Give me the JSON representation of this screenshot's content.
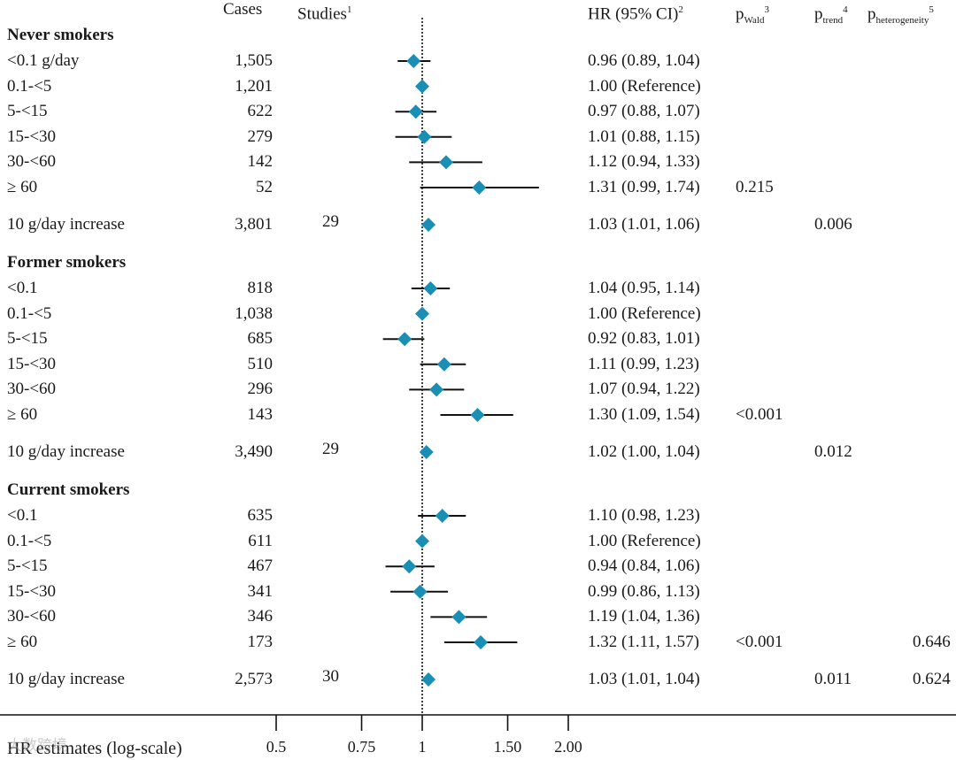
{
  "headers": {
    "cases": "Cases",
    "studies": "Studies",
    "studies_sup": "1",
    "hr": "HR (95% CI)",
    "hr_sup": "2",
    "pwald_p": "p",
    "pwald_sub": "Wald",
    "pwald_sup": "3",
    "ptrend_p": "p",
    "ptrend_sub": "trend",
    "ptrend_sup": "4",
    "phet_p": "p",
    "phet_sub": "heterogeneity",
    "phet_sup": "5"
  },
  "axis": {
    "title": "HR estimates (log-scale)",
    "ticks": [
      "0.5",
      "0.75",
      "1",
      "1.50",
      "2.00"
    ]
  },
  "watermark": "大数跨境",
  "colors": {
    "marker": "#1a8fb5",
    "line": "#111111"
  },
  "chart_data": {
    "type": "forest",
    "scale": "log",
    "reference_value": 1,
    "xlim": [
      0.5,
      2.0
    ],
    "xlabel": "HR estimates (log-scale)",
    "groups": [
      {
        "name": "Never smokers",
        "rows": [
          {
            "label": "<0.1 g/day",
            "cases": "1,505",
            "studies": "",
            "hr": 0.96,
            "lo": 0.89,
            "hi": 1.04,
            "hr_text": "0.96 (0.89, 1.04)",
            "pwald": "",
            "ptrend": "",
            "phet": ""
          },
          {
            "label": "0.1-<5",
            "cases": "1,201",
            "studies": "",
            "hr": 1.0,
            "lo": null,
            "hi": null,
            "hr_text": "1.00 (Reference)",
            "pwald": "",
            "ptrend": "",
            "phet": ""
          },
          {
            "label": "5-<15",
            "cases": "622",
            "studies": "",
            "hr": 0.97,
            "lo": 0.88,
            "hi": 1.07,
            "hr_text": "0.97 (0.88, 1.07)",
            "pwald": "",
            "ptrend": "",
            "phet": ""
          },
          {
            "label": "15-<30",
            "cases": "279",
            "studies": "",
            "hr": 1.01,
            "lo": 0.88,
            "hi": 1.15,
            "hr_text": "1.01 (0.88, 1.15)",
            "pwald": "",
            "ptrend": "",
            "phet": ""
          },
          {
            "label": "30-<60",
            "cases": "142",
            "studies": "",
            "hr": 1.12,
            "lo": 0.94,
            "hi": 1.33,
            "hr_text": "1.12 (0.94, 1.33)",
            "pwald": "",
            "ptrend": "",
            "phet": ""
          },
          {
            "label": "≥ 60",
            "cases": "52",
            "studies": "",
            "hr": 1.31,
            "lo": 0.99,
            "hi": 1.74,
            "hr_text": "1.31 (0.99, 1.74)",
            "pwald": "0.215",
            "ptrend": "",
            "phet": ""
          },
          {
            "label": "10 g/day increase",
            "cases": "3,801",
            "studies": "29",
            "hr": 1.03,
            "lo": 1.01,
            "hi": 1.06,
            "hr_text": "1.03 (1.01, 1.06)",
            "pwald": "",
            "ptrend": "0.006",
            "phet": ""
          }
        ]
      },
      {
        "name": "Former smokers",
        "rows": [
          {
            "label": "<0.1",
            "cases": "818",
            "studies": "",
            "hr": 1.04,
            "lo": 0.95,
            "hi": 1.14,
            "hr_text": "1.04 (0.95, 1.14)",
            "pwald": "",
            "ptrend": "",
            "phet": ""
          },
          {
            "label": "0.1-<5",
            "cases": "1,038",
            "studies": "",
            "hr": 1.0,
            "lo": null,
            "hi": null,
            "hr_text": "1.00 (Reference)",
            "pwald": "",
            "ptrend": "",
            "phet": ""
          },
          {
            "label": "5-<15",
            "cases": "685",
            "studies": "",
            "hr": 0.92,
            "lo": 0.83,
            "hi": 1.01,
            "hr_text": "0.92 (0.83, 1.01)",
            "pwald": "",
            "ptrend": "",
            "phet": ""
          },
          {
            "label": "15-<30",
            "cases": "510",
            "studies": "",
            "hr": 1.11,
            "lo": 0.99,
            "hi": 1.23,
            "hr_text": "1.11 (0.99, 1.23)",
            "pwald": "",
            "ptrend": "",
            "phet": ""
          },
          {
            "label": "30-<60",
            "cases": "296",
            "studies": "",
            "hr": 1.07,
            "lo": 0.94,
            "hi": 1.22,
            "hr_text": "1.07 (0.94, 1.22)",
            "pwald": "",
            "ptrend": "",
            "phet": ""
          },
          {
            "label": "≥ 60",
            "cases": "143",
            "studies": "",
            "hr": 1.3,
            "lo": 1.09,
            "hi": 1.54,
            "hr_text": "1.30 (1.09, 1.54)",
            "pwald": "<0.001",
            "ptrend": "",
            "phet": ""
          },
          {
            "label": "10 g/day increase",
            "cases": "3,490",
            "studies": "29",
            "hr": 1.02,
            "lo": 1.0,
            "hi": 1.04,
            "hr_text": "1.02 (1.00, 1.04)",
            "pwald": "",
            "ptrend": "0.012",
            "phet": ""
          }
        ]
      },
      {
        "name": "Current smokers",
        "rows": [
          {
            "label": "<0.1",
            "cases": "635",
            "studies": "",
            "hr": 1.1,
            "lo": 0.98,
            "hi": 1.23,
            "hr_text": "1.10 (0.98, 1.23)",
            "pwald": "",
            "ptrend": "",
            "phet": ""
          },
          {
            "label": "0.1-<5",
            "cases": "611",
            "studies": "",
            "hr": 1.0,
            "lo": null,
            "hi": null,
            "hr_text": "1.00 (Reference)",
            "pwald": "",
            "ptrend": "",
            "phet": ""
          },
          {
            "label": "5-<15",
            "cases": "467",
            "studies": "",
            "hr": 0.94,
            "lo": 0.84,
            "hi": 1.06,
            "hr_text": "0.94 (0.84, 1.06)",
            "pwald": "",
            "ptrend": "",
            "phet": ""
          },
          {
            "label": "15-<30",
            "cases": "341",
            "studies": "",
            "hr": 0.99,
            "lo": 0.86,
            "hi": 1.13,
            "hr_text": "0.99 (0.86, 1.13)",
            "pwald": "",
            "ptrend": "",
            "phet": ""
          },
          {
            "label": "30-<60",
            "cases": "346",
            "studies": "",
            "hr": 1.19,
            "lo": 1.04,
            "hi": 1.36,
            "hr_text": "1.19 (1.04, 1.36)",
            "pwald": "",
            "ptrend": "",
            "phet": ""
          },
          {
            "label": "≥ 60",
            "cases": "173",
            "studies": "",
            "hr": 1.32,
            "lo": 1.11,
            "hi": 1.57,
            "hr_text": "1.32 (1.11, 1.57)",
            "pwald": "<0.001",
            "ptrend": "",
            "phet": "0.646"
          },
          {
            "label": "10 g/day increase",
            "cases": "2,573",
            "studies": "30",
            "hr": 1.03,
            "lo": 1.01,
            "hi": 1.04,
            "hr_text": "1.03 (1.01, 1.04)",
            "pwald": "",
            "ptrend": "0.011",
            "phet": "0.624"
          }
        ]
      }
    ]
  }
}
